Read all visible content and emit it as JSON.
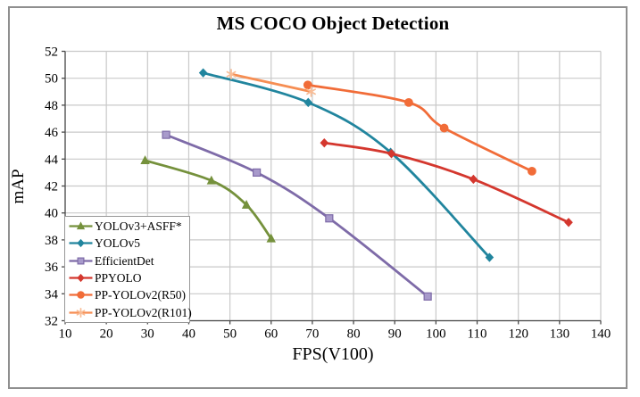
{
  "chart_data": {
    "type": "line",
    "title": "MS COCO Object Detection",
    "xlabel": "FPS(V100)",
    "ylabel": "mAP",
    "xlim": [
      10,
      140
    ],
    "ylim": [
      32,
      52
    ],
    "xticks": [
      10,
      20,
      30,
      40,
      50,
      60,
      70,
      80,
      90,
      100,
      110,
      120,
      130,
      140
    ],
    "yticks": [
      32,
      34,
      36,
      38,
      40,
      42,
      44,
      46,
      48,
      50,
      52
    ],
    "grid": true,
    "grid_color": "#c9c9c9",
    "axis_color": "#4a4a4a",
    "legend_position": "lower-left",
    "series": [
      {
        "name": "YOLOv3+ASFF*",
        "color": "#75913c",
        "marker": "triangle",
        "marker_fill": "#75913c",
        "points": [
          [
            29.4,
            43.9
          ],
          [
            45.5,
            42.4
          ],
          [
            54.0,
            40.6
          ],
          [
            60.0,
            38.1
          ]
        ]
      },
      {
        "name": "YOLOv5",
        "color": "#21859e",
        "marker": "diamond",
        "marker_fill": "#21859e",
        "points": [
          [
            43.5,
            50.4
          ],
          [
            69.0,
            48.2
          ],
          [
            89.0,
            44.5
          ],
          [
            113.0,
            36.7
          ]
        ]
      },
      {
        "name": "EfficientDet",
        "color": "#7e6ba8",
        "marker": "square",
        "marker_fill": "#a89acb",
        "points": [
          [
            34.5,
            45.8
          ],
          [
            56.5,
            43.0
          ],
          [
            74.1,
            39.6
          ],
          [
            98.0,
            33.8
          ]
        ]
      },
      {
        "name": "PPYOLO",
        "color": "#d4372e",
        "marker": "diamond",
        "marker_fill": "#d4372e",
        "points": [
          [
            72.9,
            45.2
          ],
          [
            89.2,
            44.4
          ],
          [
            109.1,
            42.5
          ],
          [
            132.2,
            39.3
          ]
        ]
      },
      {
        "name": "PP-YOLOv2(R50)",
        "color": "#f16c38",
        "marker": "circle",
        "marker_fill": "#f16c38",
        "points": [
          [
            68.9,
            49.5
          ],
          [
            93.4,
            48.2
          ],
          [
            102.0,
            46.3
          ],
          [
            123.3,
            43.1
          ]
        ]
      },
      {
        "name": "PP-YOLOv2(R101)",
        "color": "#f68e53",
        "marker": "asterisk",
        "marker_fill": "#f9bc95",
        "points": [
          [
            50.3,
            50.3
          ],
          [
            69.7,
            49.0
          ]
        ]
      }
    ]
  }
}
